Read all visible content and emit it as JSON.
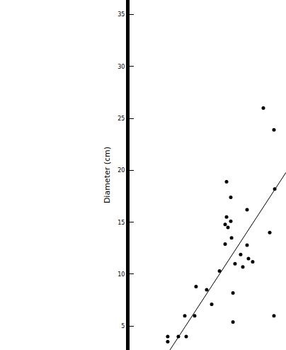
{
  "chart_data": {
    "type": "scatter",
    "y_label": "Diameter (cm)",
    "xlim": [
      0,
      100
    ],
    "xticks": [],
    "ylim": [
      2.7,
      36.4
    ],
    "yticks": [
      5,
      10,
      15,
      20,
      25,
      30,
      35
    ],
    "tick_labels": "y",
    "grid": false,
    "series": [
      {
        "type": "scatter",
        "color": "#000000",
        "marker": "circle",
        "x": [
          24.4,
          24.4,
          31.2,
          36.2,
          35.3,
          41.6,
          42.5,
          49.3,
          52.5,
          57.5,
          61.1,
          61.1,
          62.0,
          62.0,
          62.9,
          64.7,
          64.7,
          65.2,
          66.1,
          66.1,
          67.4,
          71.0,
          72.4,
          75.1,
          75.1,
          76.0,
          78.7,
          85.5,
          89.6,
          92.3,
          92.8,
          92.3
        ],
        "values": [
          4.0,
          3.5,
          4.0,
          4.0,
          6.0,
          6.0,
          8.8,
          8.5,
          7.1,
          10.3,
          14.8,
          12.9,
          18.9,
          15.5,
          14.5,
          17.4,
          15.1,
          13.5,
          8.2,
          5.4,
          11.0,
          11.9,
          10.7,
          16.2,
          12.8,
          11.5,
          11.2,
          26.0,
          14.0,
          23.9,
          18.2,
          6.0
        ]
      },
      {
        "type": "line",
        "color": "#000000",
        "line_style": "solid",
        "x": [
          25.8,
          100
        ],
        "values": [
          2.7,
          19.8
        ]
      }
    ]
  }
}
